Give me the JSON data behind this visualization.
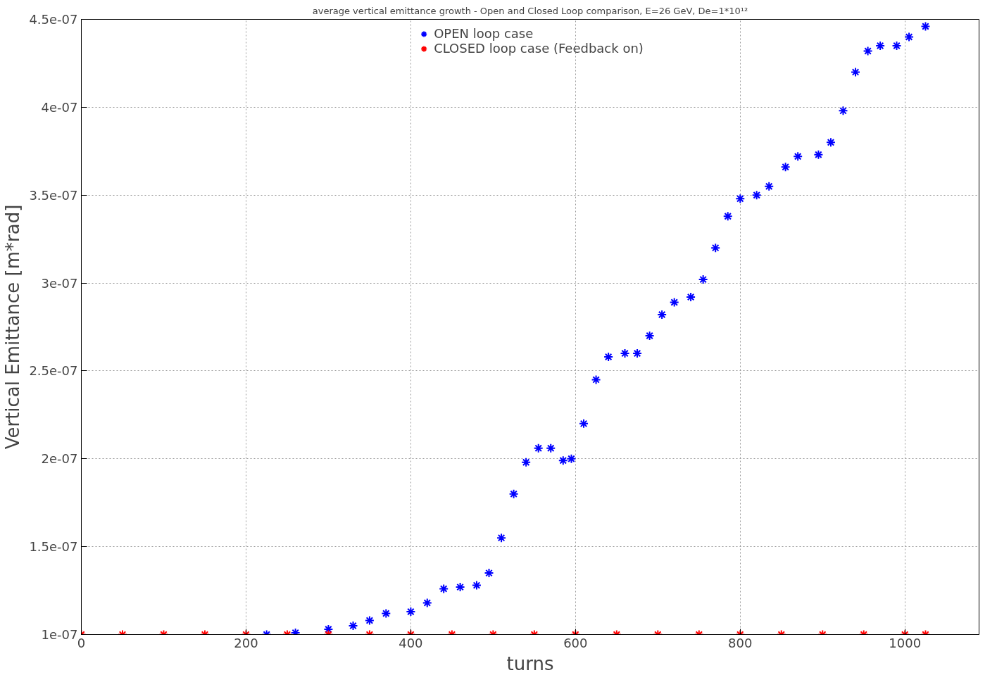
{
  "chart_data": {
    "type": "scatter",
    "title": "average vertical emittance growth - Open and Closed Loop comparison, E=26 GeV, De=1*10¹²",
    "xlabel": "turns",
    "ylabel": "Vertical Emittance [m*rad]",
    "xlim": [
      0,
      1090
    ],
    "xticks": [
      0,
      200,
      400,
      600,
      800,
      1000
    ],
    "ylim": [
      1e-07,
      4.5e-07
    ],
    "yticks": [
      {
        "value": 1e-07,
        "label": "1e-07"
      },
      {
        "value": 1.5e-07,
        "label": "1.5e-07"
      },
      {
        "value": 2e-07,
        "label": "2e-07"
      },
      {
        "value": 2.5e-07,
        "label": "2.5e-07"
      },
      {
        "value": 3e-07,
        "label": "3e-07"
      },
      {
        "value": 3.5e-07,
        "label": "3.5e-07"
      },
      {
        "value": 4e-07,
        "label": "4e-07"
      },
      {
        "value": 4.5e-07,
        "label": "4.5e-07"
      }
    ],
    "grid": true,
    "legend": "top",
    "marker": "cross",
    "series": [
      {
        "name": "OPEN loop case",
        "color": "#0000ff",
        "x": [
          225,
          260,
          300,
          330,
          350,
          370,
          400,
          420,
          440,
          460,
          480,
          495,
          510,
          525,
          540,
          555,
          570,
          585,
          595,
          610,
          625,
          640,
          660,
          675,
          690,
          705,
          720,
          740,
          755,
          770,
          785,
          800,
          820,
          835,
          855,
          870,
          895,
          910,
          925,
          940,
          955,
          970,
          990,
          1005,
          1025
        ],
        "values": [
          1e-07,
          1.01e-07,
          1.03e-07,
          1.05e-07,
          1.08e-07,
          1.12e-07,
          1.13e-07,
          1.18e-07,
          1.26e-07,
          1.27e-07,
          1.28e-07,
          1.35e-07,
          1.55e-07,
          1.8e-07,
          1.98e-07,
          2.06e-07,
          2.06e-07,
          1.99e-07,
          2e-07,
          2.2e-07,
          2.45e-07,
          2.58e-07,
          2.6e-07,
          2.6e-07,
          2.7e-07,
          2.82e-07,
          2.89e-07,
          2.92e-07,
          3.02e-07,
          3.2e-07,
          3.38e-07,
          3.48e-07,
          3.5e-07,
          3.55e-07,
          3.66e-07,
          3.72e-07,
          3.73e-07,
          3.8e-07,
          3.98e-07,
          4.2e-07,
          4.32e-07,
          4.35e-07,
          4.35e-07,
          4.4e-07,
          4.46e-07
        ]
      },
      {
        "name": "CLOSED loop case (Feedback on)",
        "color": "#ff0000",
        "x": [
          0,
          50,
          100,
          150,
          200,
          250,
          300,
          350,
          400,
          450,
          500,
          550,
          600,
          650,
          700,
          750,
          800,
          850,
          900,
          950,
          1000,
          1025
        ],
        "values": [
          1e-07,
          1e-07,
          1e-07,
          1e-07,
          1e-07,
          1e-07,
          1e-07,
          1e-07,
          1e-07,
          1e-07,
          1e-07,
          1e-07,
          1e-07,
          1e-07,
          1e-07,
          1e-07,
          1e-07,
          1e-07,
          1e-07,
          1e-07,
          1e-07,
          1e-07
        ]
      }
    ]
  }
}
